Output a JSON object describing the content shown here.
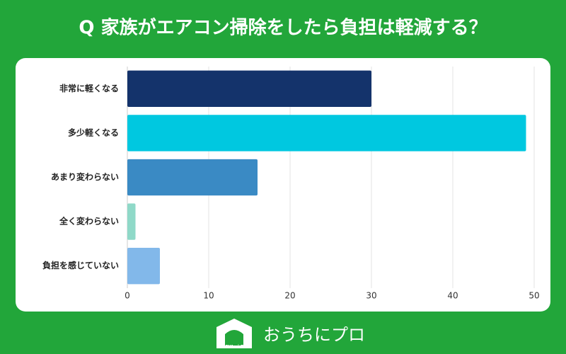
{
  "chart_data": {
    "type": "bar",
    "orientation": "horizontal",
    "title": "Q 家族がエアコン掃除をしたら負担は軽減する？",
    "categories": [
      "非常に軽くなる",
      "多少軽くなる",
      "あまり変わらない",
      "全く変わらない",
      "負担を感じていない"
    ],
    "values": [
      30,
      49,
      16,
      1,
      4
    ],
    "colors": [
      "#14336b",
      "#00c8e0",
      "#3a8ac4",
      "#8fd9c8",
      "#82b8ea"
    ],
    "xlim": [
      0,
      50
    ],
    "xticks": [
      0,
      10,
      20,
      30,
      40,
      50
    ],
    "grid": true
  },
  "footer": {
    "logo_text": "OUCHI ni PRO",
    "brand": "おうちにプロ"
  }
}
